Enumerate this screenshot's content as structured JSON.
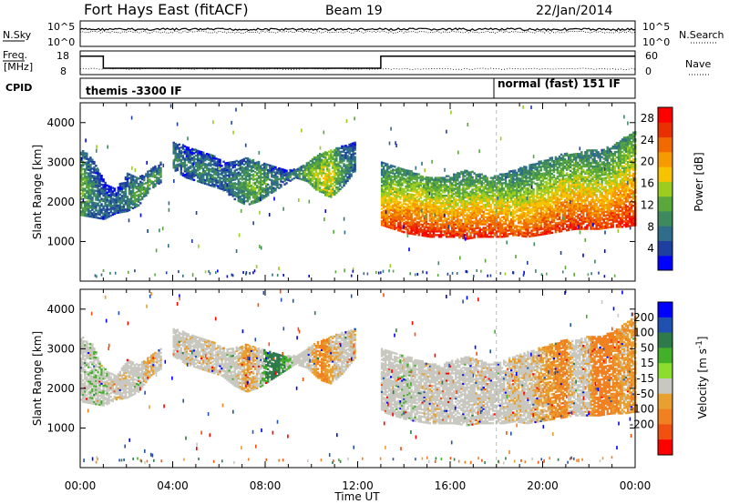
{
  "header": {
    "title": "Fort Hays East (fitACF)",
    "beam": "Beam 19",
    "date": "22/Jan/2014"
  },
  "summary_panels": {
    "nsky_label": "N.Sky",
    "nsky_ticks": [
      "10^5",
      "10^0"
    ],
    "nsearch_label": "N.Search",
    "nsearch_ticks": [
      "10^5",
      "10^0"
    ],
    "freq_label_1": "Freq.",
    "freq_label_2": "[MHz]",
    "freq_ticks": [
      "18",
      "8"
    ],
    "nave_label": "Nave",
    "nave_ticks": [
      "60",
      "0"
    ],
    "cpid_label": "CPID",
    "cpid_segments": [
      {
        "label": "themis -3300 IF",
        "start": 0,
        "end": 18
      },
      {
        "label": "normal (fast) 151 IF",
        "start": 18,
        "end": 24
      }
    ]
  },
  "colors": {
    "power_scale": [
      "#0000ff",
      "#1f3fa0",
      "#2f6d8a",
      "#3e8a5f",
      "#5aa83c",
      "#9ccc20",
      "#f5c300",
      "#f59a00",
      "#f06a00",
      "#e83000",
      "#ff0000"
    ],
    "velocity_scale": [
      "#0000ff",
      "#2050b0",
      "#2f7a4a",
      "#44b02a",
      "#8ddd30",
      "#c8c8c0",
      "#e8a030",
      "#f08020",
      "#f05010",
      "#ff0000"
    ],
    "gray": "#c8c8c0"
  },
  "chart_data": [
    {
      "type": "heatmap",
      "name": "power-panel",
      "ylabel": "Slant Range [km]",
      "yticks": [
        "1000",
        "2000",
        "3000",
        "4000"
      ],
      "ylim": [
        0,
        4500
      ],
      "xlim": [
        0,
        24
      ],
      "xticks": [
        "00:00",
        "04:00",
        "08:00",
        "12:00",
        "16:00",
        "20:00",
        "00:00"
      ],
      "colorbar": {
        "label": "Power [dB]",
        "ticks": [
          "4",
          "8",
          "12",
          "16",
          "20",
          "24",
          "28"
        ],
        "range": [
          0,
          30
        ]
      },
      "bands": [
        {
          "t0": 0.0,
          "t1": 3.5,
          "r_lo": [
            1650,
            1600,
            1550,
            1700,
            1750,
            1900,
            2300,
            2500
          ],
          "r_hi": [
            3300,
            3100,
            2500,
            2300,
            2700,
            2600,
            2800,
            3000
          ],
          "p": [
            14,
            10,
            8,
            8,
            10,
            12,
            12,
            10
          ]
        },
        {
          "t0": 4.0,
          "t1": 11.9,
          "r_lo": [
            2800,
            2600,
            2500,
            2400,
            2300,
            2050,
            1900,
            2000,
            2200,
            2400,
            2600,
            2500,
            2200,
            2100,
            2400,
            2800
          ],
          "r_hi": [
            3500,
            3400,
            3300,
            3200,
            3000,
            3000,
            3100,
            3000,
            2900,
            2800,
            2800,
            3000,
            3200,
            3300,
            3400,
            3500
          ],
          "p": [
            10,
            8,
            10,
            10,
            8,
            10,
            12,
            14,
            10,
            8,
            10,
            14,
            16,
            18,
            10,
            8
          ]
        },
        {
          "t0": 13.0,
          "t1": 24.0,
          "r_lo": [
            1400,
            1300,
            1200,
            1150,
            1100,
            1100,
            1100,
            1050,
            1100,
            1100,
            1100,
            1150,
            1100,
            1150,
            1200,
            1250,
            1300,
            1300,
            1300,
            1350,
            1350,
            1400
          ],
          "r_hi": [
            3000,
            2900,
            2800,
            2700,
            2600,
            2600,
            2700,
            2800,
            2700,
            2600,
            2700,
            2800,
            2900,
            3000,
            3100,
            3200,
            3200,
            3300,
            3300,
            3400,
            3600,
            3800
          ],
          "p": [
            24,
            26,
            27,
            28,
            28,
            27,
            26,
            26,
            27,
            27,
            26,
            25,
            25,
            26,
            26,
            27,
            27,
            26,
            25,
            26,
            27,
            28
          ]
        }
      ]
    },
    {
      "type": "heatmap",
      "name": "velocity-panel",
      "ylabel": "Slant Range [km]",
      "yticks": [
        "1000",
        "2000",
        "3000",
        "4000"
      ],
      "ylim": [
        0,
        4500
      ],
      "xlim": [
        0,
        24
      ],
      "xticks": [
        "00:00",
        "04:00",
        "08:00",
        "12:00",
        "16:00",
        "20:00",
        "00:00"
      ],
      "xlabel": "Time UT",
      "colorbar": {
        "label": "Velocity [m s^-1]",
        "ticks": [
          "200",
          "100",
          "50",
          "15",
          "-15",
          "-50",
          "-100",
          "-200"
        ],
        "range": [
          -250,
          250
        ]
      },
      "bands": [
        {
          "t0": 0.0,
          "t1": 3.5,
          "r_lo": [
            1650,
            1600,
            1550,
            1700,
            1750,
            1900,
            2300,
            2500
          ],
          "r_hi": [
            3300,
            3100,
            2500,
            2300,
            2700,
            2600,
            2800,
            3000
          ],
          "v": [
            0,
            10,
            5,
            -10,
            0,
            5,
            -20,
            0
          ]
        },
        {
          "t0": 4.0,
          "t1": 11.9,
          "r_lo": [
            2800,
            2600,
            2500,
            2400,
            2300,
            2050,
            1900,
            2000,
            2200,
            2400,
            2600,
            2500,
            2200,
            2100,
            2400,
            2800
          ],
          "r_hi": [
            3500,
            3400,
            3300,
            3200,
            3000,
            3000,
            3100,
            3000,
            2900,
            2800,
            2800,
            3000,
            3200,
            3300,
            3400,
            3500
          ],
          "v": [
            0,
            -5,
            0,
            -10,
            0,
            5,
            -30,
            0,
            60,
            30,
            0,
            0,
            -40,
            -20,
            0,
            -10
          ]
        },
        {
          "t0": 13.0,
          "t1": 24.0,
          "r_lo": [
            1400,
            1300,
            1200,
            1150,
            1100,
            1100,
            1100,
            1050,
            1100,
            1100,
            1100,
            1150,
            1100,
            1150,
            1200,
            1250,
            1300,
            1300,
            1300,
            1350,
            1350,
            1400
          ],
          "r_hi": [
            3000,
            2900,
            2800,
            2700,
            2600,
            2600,
            2700,
            2800,
            2700,
            2600,
            2700,
            2800,
            2900,
            3000,
            3100,
            3200,
            3200,
            3300,
            3300,
            3400,
            3600,
            3800
          ],
          "v": [
            0,
            0,
            5,
            0,
            -5,
            0,
            0,
            0,
            -5,
            0,
            0,
            -10,
            0,
            -20,
            -30,
            -40,
            0,
            -10,
            -60,
            -40,
            -20,
            -30
          ]
        }
      ]
    }
  ]
}
